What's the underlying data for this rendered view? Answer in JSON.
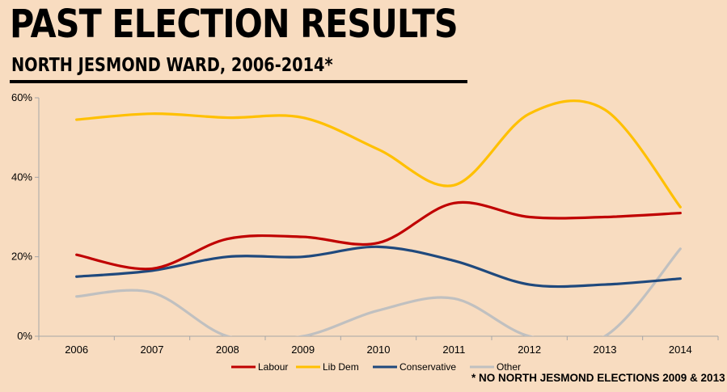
{
  "header": {
    "title": "PAST ELECTION RESULTS",
    "subtitle": "NORTH JESMOND WARD, 2006-2014*"
  },
  "footnote": "* NO NORTH JESMOND ELECTIONS 2009 & 2013",
  "chart_data": {
    "type": "line",
    "smooth": true,
    "title": "PAST ELECTION RESULTS",
    "subtitle": "NORTH JESMOND WARD, 2006-2014*",
    "xlabel": "",
    "ylabel": "",
    "ylim": [
      0,
      60
    ],
    "y_ticks": [
      0,
      20,
      40,
      60
    ],
    "y_tick_labels": [
      "0%",
      "20%",
      "40%",
      "60%"
    ],
    "categories": [
      "2006",
      "2007",
      "2008",
      "2009",
      "2010",
      "2011",
      "2012",
      "2013",
      "2014"
    ],
    "legend_position": "bottom",
    "grid": false,
    "series": [
      {
        "name": "Labour",
        "color": "#c00000",
        "values": [
          20.5,
          17,
          24.5,
          25,
          23.5,
          33.5,
          30,
          30,
          31
        ]
      },
      {
        "name": "Lib Dem",
        "color": "#ffc000",
        "values": [
          54.5,
          56,
          55,
          55,
          47,
          38,
          56,
          57,
          32.5
        ]
      },
      {
        "name": "Conservative",
        "color": "#1f497d",
        "values": [
          15,
          16.5,
          20,
          20,
          22.5,
          19,
          13,
          13,
          14.5
        ]
      },
      {
        "name": "Other",
        "color": "#c0c0c0",
        "values": [
          10,
          11,
          0,
          0,
          6.5,
          9.5,
          0,
          0,
          22
        ]
      }
    ]
  }
}
